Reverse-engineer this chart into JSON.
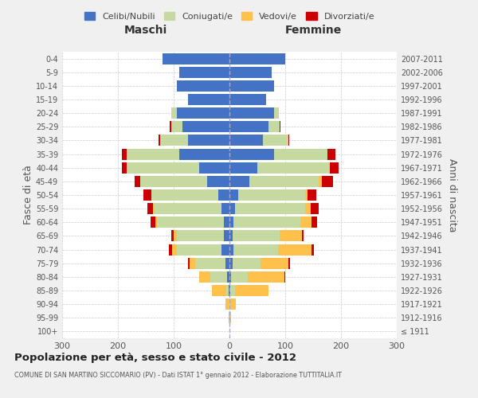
{
  "age_groups": [
    "100+",
    "95-99",
    "90-94",
    "85-89",
    "80-84",
    "75-79",
    "70-74",
    "65-69",
    "60-64",
    "55-59",
    "50-54",
    "45-49",
    "40-44",
    "35-39",
    "30-34",
    "25-29",
    "20-24",
    "15-19",
    "10-14",
    "5-9",
    "0-4"
  ],
  "birth_years": [
    "≤ 1911",
    "1912-1916",
    "1917-1921",
    "1922-1926",
    "1927-1931",
    "1932-1936",
    "1937-1941",
    "1942-1946",
    "1947-1951",
    "1952-1956",
    "1957-1961",
    "1962-1966",
    "1967-1971",
    "1972-1976",
    "1977-1981",
    "1982-1986",
    "1987-1991",
    "1992-1996",
    "1997-2001",
    "2002-2006",
    "2007-2011"
  ],
  "maschi": {
    "celibi": [
      0,
      0,
      0,
      1,
      5,
      7,
      15,
      10,
      10,
      15,
      20,
      40,
      55,
      90,
      75,
      85,
      95,
      75,
      95,
      90,
      120
    ],
    "coniugati": [
      0,
      0,
      2,
      5,
      30,
      55,
      80,
      85,
      120,
      120,
      120,
      120,
      130,
      95,
      50,
      20,
      10,
      0,
      0,
      0,
      0
    ],
    "vedovi": [
      0,
      2,
      5,
      25,
      20,
      10,
      8,
      5,
      3,
      2,
      0,
      0,
      0,
      0,
      0,
      0,
      0,
      0,
      0,
      0,
      0
    ],
    "divorziati": [
      0,
      0,
      0,
      0,
      0,
      3,
      5,
      5,
      8,
      10,
      15,
      10,
      8,
      8,
      2,
      2,
      0,
      0,
      0,
      0,
      0
    ]
  },
  "femmine": {
    "nubili": [
      0,
      0,
      0,
      2,
      3,
      5,
      7,
      5,
      7,
      10,
      15,
      35,
      50,
      80,
      60,
      70,
      80,
      65,
      80,
      75,
      100
    ],
    "coniugate": [
      0,
      0,
      2,
      8,
      30,
      50,
      80,
      85,
      120,
      125,
      120,
      125,
      130,
      95,
      45,
      20,
      8,
      0,
      0,
      0,
      0
    ],
    "vedove": [
      0,
      3,
      10,
      60,
      65,
      50,
      60,
      40,
      20,
      10,
      5,
      5,
      0,
      0,
      0,
      0,
      0,
      0,
      0,
      0,
      0
    ],
    "divorziate": [
      0,
      0,
      0,
      0,
      2,
      3,
      5,
      3,
      10,
      15,
      15,
      20,
      15,
      15,
      2,
      2,
      0,
      0,
      0,
      0,
      0
    ]
  },
  "colors": {
    "celibi": "#4472C4",
    "coniugati": "#c5d9a0",
    "vedovi": "#ffc04c",
    "divorziati": "#cc0000"
  },
  "xlim": 300,
  "title": "Popolazione per età, sesso e stato civile - 2012",
  "subtitle": "COMUNE DI SAN MARTINO SICCOMARIO (PV) - Dati ISTAT 1° gennaio 2012 - Elaborazione TUTTITALIA.IT",
  "ylabel_left": "Fasce di età",
  "ylabel_right": "Anni di nascita",
  "xlabel_maschi": "Maschi",
  "xlabel_femmine": "Femmine",
  "legend_labels": [
    "Celibi/Nubili",
    "Coniugati/e",
    "Vedovi/e",
    "Divorziati/e"
  ],
  "bg_color": "#f0f0f0",
  "plot_bg": "#ffffff"
}
